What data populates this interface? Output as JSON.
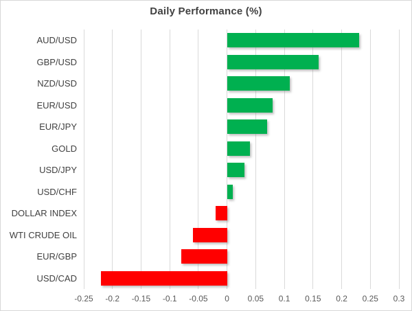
{
  "chart_data": {
    "type": "bar",
    "orientation": "horizontal",
    "title": "Daily Performance (%)",
    "categories": [
      "AUD/USD",
      "GBP/USD",
      "NZD/USD",
      "EUR/USD",
      "EUR/JPY",
      "GOLD",
      "USD/JPY",
      "USD/CHF",
      "DOLLAR INDEX",
      "WTI CRUDE OIL",
      "EUR/GBP",
      "USD/CAD"
    ],
    "values": [
      0.23,
      0.16,
      0.11,
      0.08,
      0.07,
      0.04,
      0.03,
      0.01,
      -0.02,
      -0.06,
      -0.08,
      -0.22
    ],
    "xlabel": "",
    "ylabel": "",
    "xlim": [
      -0.25,
      0.3
    ],
    "xticks": [
      -0.25,
      -0.2,
      -0.15,
      -0.1,
      -0.05,
      0,
      0.05,
      0.1,
      0.15,
      0.2,
      0.25,
      0.3
    ],
    "xtick_labels": [
      "-0.25",
      "-0.2",
      "-0.15",
      "-0.1",
      "-0.05",
      "0",
      "0.05",
      "0.1",
      "0.15",
      "0.2",
      "0.25",
      "0.3"
    ],
    "grid": true,
    "legend": false,
    "colors": {
      "positive": "#00B050",
      "negative": "#FF0000",
      "gridline": "#d9d9d9",
      "title_text": "#404040",
      "category_text": "#404040",
      "tick_text": "#595959"
    }
  }
}
